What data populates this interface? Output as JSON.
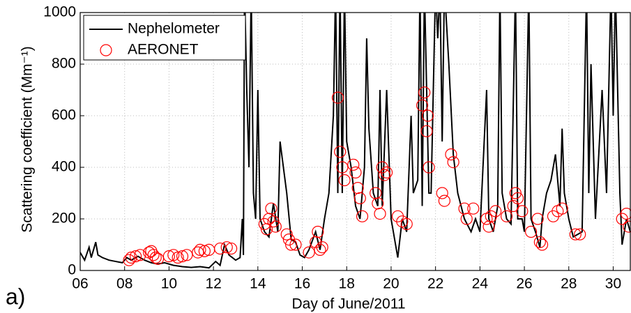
{
  "chart_data": {
    "type": "line",
    "x_label": "Day of June/2011",
    "y_label": "Scattering coefficient (Mm⁻¹)",
    "annotation": "a)",
    "xlim": [
      6,
      30.77
    ],
    "xticks": [
      {
        "value": 6,
        "label": "06"
      },
      {
        "value": 8,
        "label": "08"
      },
      10,
      12,
      14,
      16,
      18,
      20,
      22,
      24,
      26,
      28,
      30
    ],
    "ylim": [
      0,
      1000
    ],
    "yticks": [
      0,
      200,
      400,
      600,
      800,
      1000
    ],
    "grid": true,
    "legend": "upper left",
    "series": [
      {
        "name": "Nephelometer",
        "color": "#000000",
        "style": "line",
        "x": [
          6.0,
          6.2,
          6.4,
          6.5,
          6.7,
          6.8,
          7.0,
          7.3,
          7.6,
          7.9,
          8.1,
          8.3,
          8.6,
          8.9,
          9.2,
          9.5,
          9.8,
          10.2,
          10.6,
          11.0,
          11.4,
          11.8,
          12.1,
          12.3,
          12.5,
          12.7,
          13.0,
          13.2,
          13.3,
          13.35,
          13.4,
          13.5,
          13.6,
          13.7,
          13.8,
          13.9,
          14.0,
          14.1,
          14.3,
          14.5,
          14.7,
          14.9,
          15.0,
          15.3,
          15.5,
          15.7,
          15.9,
          16.1,
          16.3,
          16.6,
          16.8,
          17.0,
          17.2,
          17.4,
          17.5,
          17.6,
          17.7,
          17.8,
          17.9,
          18.0,
          18.2,
          18.4,
          18.6,
          18.8,
          18.9,
          19.0,
          19.2,
          19.4,
          19.5,
          19.6,
          19.8,
          20.0,
          20.2,
          20.3,
          20.5,
          20.7,
          20.9,
          21.0,
          21.2,
          21.3,
          21.4,
          21.5,
          21.6,
          21.7,
          21.8,
          22.0,
          22.1,
          22.2,
          22.3,
          22.4,
          22.6,
          22.8,
          23.0,
          23.3,
          23.6,
          23.8,
          24.0,
          24.3,
          24.4,
          24.6,
          24.8,
          24.9,
          25.0,
          25.2,
          25.4,
          25.6,
          25.7,
          25.9,
          26.0,
          26.2,
          26.3,
          26.5,
          26.7,
          26.8,
          27.0,
          27.2,
          27.4,
          27.6,
          27.7,
          27.8,
          28.0,
          28.2,
          28.4,
          28.6,
          28.8,
          28.9,
          29.0,
          29.2,
          29.5,
          29.7,
          29.9,
          30.0,
          30.1,
          30.3,
          30.4,
          30.6,
          30.77
        ],
        "values": [
          70,
          40,
          90,
          50,
          110,
          60,
          50,
          40,
          35,
          30,
          50,
          40,
          55,
          40,
          30,
          25,
          30,
          20,
          15,
          12,
          15,
          10,
          35,
          20,
          100,
          60,
          40,
          50,
          200,
          60,
          1100,
          700,
          400,
          1100,
          300,
          200,
          700,
          200,
          150,
          130,
          260,
          150,
          500,
          300,
          120,
          110,
          60,
          50,
          80,
          150,
          80,
          200,
          300,
          600,
          1100,
          300,
          1100,
          300,
          1100,
          500,
          400,
          250,
          200,
          400,
          900,
          550,
          300,
          250,
          700,
          250,
          700,
          200,
          100,
          50,
          200,
          150,
          600,
          300,
          350,
          1100,
          250,
          1100,
          700,
          300,
          300,
          1100,
          900,
          1100,
          500,
          1100,
          800,
          450,
          300,
          200,
          150,
          200,
          150,
          700,
          200,
          150,
          250,
          1100,
          300,
          200,
          180,
          1100,
          200,
          200,
          150,
          1100,
          200,
          150,
          90,
          200,
          300,
          350,
          450,
          250,
          550,
          300,
          200,
          130,
          140,
          150,
          1100,
          300,
          800,
          200,
          700,
          300,
          1100,
          600,
          1100,
          300,
          100,
          200,
          150
        ]
      },
      {
        "name": "AERONET",
        "color": "#ff0000",
        "style": "markers",
        "x": [
          8.2,
          8.3,
          8.5,
          8.7,
          9.1,
          9.2,
          9.3,
          9.4,
          9.5,
          10.0,
          10.2,
          10.4,
          10.6,
          10.8,
          11.3,
          11.4,
          11.6,
          11.8,
          12.3,
          12.6,
          12.8,
          14.3,
          14.4,
          14.5,
          14.6,
          14.7,
          14.8,
          15.3,
          15.4,
          15.5,
          15.7,
          16.3,
          16.6,
          16.7,
          16.8,
          16.9,
          17.6,
          17.7,
          17.8,
          17.9,
          18.3,
          18.4,
          18.5,
          18.6,
          18.7,
          19.3,
          19.4,
          19.5,
          19.6,
          19.7,
          19.8,
          20.3,
          20.5,
          20.7,
          21.4,
          21.5,
          21.6,
          21.7,
          21.65,
          22.3,
          22.4,
          22.7,
          22.8,
          23.3,
          23.4,
          23.7,
          24.3,
          24.4,
          24.5,
          24.7,
          25.2,
          25.5,
          25.6,
          25.7,
          25.9,
          26.3,
          26.6,
          26.7,
          26.8,
          27.3,
          27.5,
          27.7,
          28.3,
          28.5,
          30.4,
          30.6,
          30.7
        ],
        "values": [
          40,
          50,
          55,
          60,
          70,
          75,
          60,
          50,
          45,
          55,
          60,
          50,
          55,
          60,
          70,
          80,
          75,
          80,
          85,
          90,
          85,
          180,
          160,
          200,
          240,
          190,
          170,
          140,
          120,
          100,
          100,
          70,
          110,
          150,
          80,
          90,
          670,
          460,
          400,
          350,
          410,
          380,
          320,
          280,
          210,
          300,
          260,
          220,
          400,
          370,
          380,
          210,
          190,
          180,
          640,
          690,
          540,
          400,
          600,
          300,
          270,
          450,
          420,
          240,
          200,
          240,
          200,
          170,
          210,
          230,
          210,
          250,
          300,
          280,
          230,
          150,
          200,
          110,
          100,
          210,
          230,
          240,
          140,
          140,
          200,
          220,
          170
        ]
      }
    ]
  }
}
